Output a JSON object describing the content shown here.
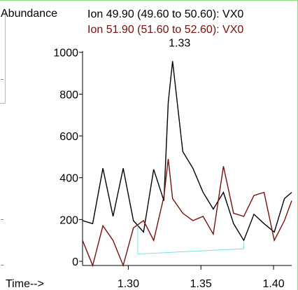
{
  "chart_data": {
    "type": "line",
    "ylabel": "Abundance",
    "xlabel": "Time-->",
    "xlim": [
      1.2685,
      1.4125
    ],
    "ylim": [
      -20,
      1150
    ],
    "xticks": [
      {
        "value": 1.3,
        "label": "1.30"
      },
      {
        "value": 1.35,
        "label": "1.35"
      },
      {
        "value": 1.4,
        "label": "1.40"
      }
    ],
    "yticks": [
      {
        "value": 0,
        "label": "0"
      },
      {
        "value": 200,
        "label": "200"
      },
      {
        "value": 400,
        "label": "400"
      },
      {
        "value": 600,
        "label": "600"
      },
      {
        "value": 800,
        "label": "800"
      },
      {
        "value": 1000,
        "label": "1000"
      }
    ],
    "peak_label": {
      "text": "1.33",
      "x": 1.3305,
      "y": 1000
    },
    "series": [
      {
        "name": "Ion  49.90 (49.60 to 50.60): VX0",
        "color": "#000000",
        "x": [
          1.2685,
          1.2755,
          1.2825,
          1.2895,
          1.2965,
          1.3035,
          1.3105,
          1.3175,
          1.3245,
          1.3275,
          1.3305,
          1.3375,
          1.3445,
          1.3515,
          1.3585,
          1.3655,
          1.3725,
          1.3795,
          1.3865,
          1.3935,
          1.4005,
          1.4075,
          1.4125
        ],
        "y": [
          195,
          180,
          445,
          215,
          445,
          195,
          140,
          440,
          290,
          760,
          958,
          525,
          445,
          330,
          250,
          330,
          180,
          100,
          225,
          180,
          140,
          300,
          330
        ]
      },
      {
        "name": "Ion  51.90 (51.60 to 52.60): VX0",
        "color": "#7a0f0f",
        "x": [
          1.2685,
          1.2755,
          1.2825,
          1.2895,
          1.2965,
          1.3035,
          1.3105,
          1.3175,
          1.3245,
          1.3275,
          1.3305,
          1.3375,
          1.3445,
          1.3515,
          1.3585,
          1.3655,
          1.3725,
          1.3795,
          1.3865,
          1.3935,
          1.4005,
          1.4075,
          1.4125
        ],
        "y": [
          100,
          -20,
          170,
          100,
          -20,
          160,
          195,
          100,
          310,
          490,
          300,
          230,
          195,
          215,
          130,
          455,
          230,
          215,
          315,
          330,
          100,
          195,
          290
        ]
      }
    ],
    "baseline": {
      "color": "#7fdfe6",
      "points": [
        [
          1.3065,
          170
        ],
        [
          1.3065,
          35
        ],
        [
          1.3795,
          60
        ],
        [
          1.3795,
          90
        ]
      ]
    }
  }
}
